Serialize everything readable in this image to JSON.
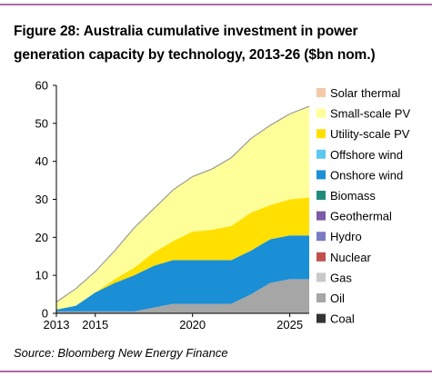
{
  "chart_data": {
    "type": "area",
    "title": "Figure 28: Australia cumulative investment in power generation capacity by technology, 2013-26 ($bn nom.)",
    "source": "Source: Bloomberg New Energy Finance",
    "x": [
      2013,
      2014,
      2015,
      2016,
      2017,
      2018,
      2019,
      2020,
      2021,
      2022,
      2023,
      2024,
      2025,
      2026
    ],
    "xticks": [
      "2013",
      "2015",
      "2020",
      "2025"
    ],
    "xtick_values": [
      2013,
      2015,
      2020,
      2025
    ],
    "ylim": [
      0,
      60
    ],
    "yticks": [
      "0",
      "10",
      "20",
      "30",
      "40",
      "50",
      "60"
    ],
    "ytick_values": [
      0,
      10,
      20,
      30,
      40,
      50,
      60
    ],
    "stacked": true,
    "series": [
      {
        "name": "Coal",
        "color": "#333333",
        "values": [
          0,
          0,
          0,
          0,
          0,
          0,
          0,
          0,
          0,
          0,
          0,
          0,
          0,
          0
        ]
      },
      {
        "name": "Oil",
        "color": "#a6a6a6",
        "values": [
          0.5,
          0.5,
          0.5,
          0.5,
          0.5,
          1.5,
          2.5,
          2.5,
          2.5,
          2.5,
          5,
          8,
          9,
          9
        ]
      },
      {
        "name": "Gas",
        "color": "#c8c8c8",
        "values": [
          0,
          0,
          0,
          0,
          0,
          0,
          0,
          0,
          0,
          0,
          0,
          0,
          0,
          0
        ]
      },
      {
        "name": "Nuclear",
        "color": "#c0504d",
        "values": [
          0,
          0,
          0,
          0,
          0,
          0,
          0,
          0,
          0,
          0,
          0,
          0,
          0,
          0
        ]
      },
      {
        "name": "Hydro",
        "color": "#7b7bc4",
        "values": [
          0,
          0,
          0,
          0,
          0,
          0,
          0,
          0,
          0,
          0,
          0,
          0,
          0,
          0
        ]
      },
      {
        "name": "Geothermal",
        "color": "#7d5aa6",
        "values": [
          0,
          0,
          0,
          0,
          0,
          0,
          0,
          0,
          0,
          0,
          0,
          0,
          0,
          0
        ]
      },
      {
        "name": "Biomass",
        "color": "#1f8c7a",
        "values": [
          0,
          0,
          0,
          0,
          0,
          0,
          0,
          0,
          0,
          0,
          0,
          0,
          0,
          0
        ]
      },
      {
        "name": "Onshore wind",
        "color": "#1a8fd6",
        "values": [
          0.5,
          1.5,
          5,
          7.5,
          9.5,
          11,
          11.5,
          11.5,
          11.5,
          11.5,
          11.5,
          11.5,
          11.5,
          11.5
        ]
      },
      {
        "name": "Offshore wind",
        "color": "#5bc8f0",
        "values": [
          0,
          0,
          0,
          0,
          0,
          0,
          0,
          0,
          0,
          0,
          0,
          0,
          0,
          0
        ]
      },
      {
        "name": "Utility-scale PV",
        "color": "#ffe000",
        "values": [
          0,
          0,
          0,
          1,
          2,
          3.5,
          5,
          7.5,
          8,
          9,
          10,
          9,
          9.5,
          10
        ]
      },
      {
        "name": "Small-scale PV",
        "color": "#ffff99",
        "values": [
          2,
          4.5,
          5.5,
          7.5,
          10.5,
          11.5,
          13.5,
          14.5,
          16,
          18,
          19.5,
          21,
          22.5,
          24
        ]
      },
      {
        "name": "Solar thermal",
        "color": "#f5c9a8",
        "values": [
          0,
          0,
          0,
          0,
          0,
          0,
          0,
          0,
          0,
          0,
          0,
          0,
          0,
          0
        ]
      }
    ],
    "legend_order": [
      "Solar thermal",
      "Small-scale PV",
      "Utility-scale PV",
      "Offshore wind",
      "Onshore wind",
      "Biomass",
      "Geothermal",
      "Hydro",
      "Nuclear",
      "Gas",
      "Oil",
      "Coal"
    ],
    "legend_placement": "right",
    "grid": false
  }
}
